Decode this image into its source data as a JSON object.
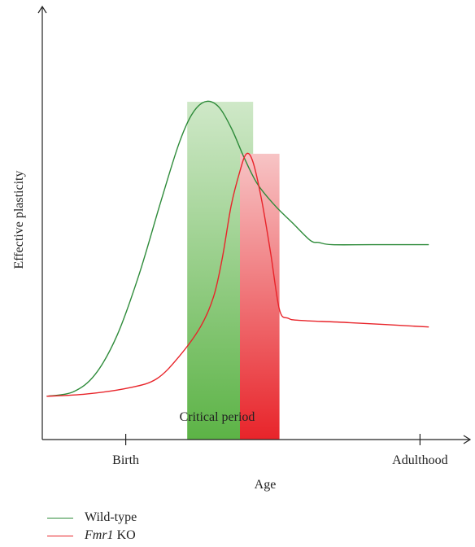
{
  "chart_data": {
    "type": "line",
    "title": "",
    "xlabel": "Age",
    "ylabel": "Effective plasticity",
    "x_ticks": [
      {
        "label": "Birth",
        "x": 0.19
      },
      {
        "label": "Adulthood",
        "x": 0.86
      }
    ],
    "critical_period": {
      "label": "Critical period",
      "bands": [
        {
          "series": "Wild-type",
          "x_start": 0.33,
          "x_end": 0.48,
          "peak": 0.78,
          "color": "#5cb346"
        },
        {
          "series": "Fmr1 KO",
          "x_start": 0.45,
          "x_end": 0.54,
          "peak": 0.66,
          "color": "#e8242a"
        }
      ]
    },
    "series": [
      {
        "name": "Wild-type",
        "color": "#2e8b3a",
        "points": [
          [
            0.01,
            0.1
          ],
          [
            0.07,
            0.11
          ],
          [
            0.12,
            0.15
          ],
          [
            0.17,
            0.24
          ],
          [
            0.22,
            0.38
          ],
          [
            0.27,
            0.55
          ],
          [
            0.31,
            0.68
          ],
          [
            0.34,
            0.75
          ],
          [
            0.37,
            0.78
          ],
          [
            0.4,
            0.77
          ],
          [
            0.43,
            0.72
          ],
          [
            0.46,
            0.65
          ],
          [
            0.49,
            0.59
          ],
          [
            0.53,
            0.54
          ],
          [
            0.57,
            0.5
          ],
          [
            0.61,
            0.46
          ],
          [
            0.63,
            0.455
          ],
          [
            0.66,
            0.45
          ],
          [
            0.75,
            0.45
          ],
          [
            0.88,
            0.45
          ]
        ]
      },
      {
        "name": "Fmr1 KO",
        "color": "#e8242a",
        "points": [
          [
            0.01,
            0.1
          ],
          [
            0.1,
            0.105
          ],
          [
            0.2,
            0.12
          ],
          [
            0.26,
            0.14
          ],
          [
            0.31,
            0.19
          ],
          [
            0.36,
            0.26
          ],
          [
            0.39,
            0.33
          ],
          [
            0.41,
            0.42
          ],
          [
            0.43,
            0.54
          ],
          [
            0.45,
            0.62
          ],
          [
            0.465,
            0.66
          ],
          [
            0.48,
            0.64
          ],
          [
            0.5,
            0.55
          ],
          [
            0.52,
            0.43
          ],
          [
            0.54,
            0.3
          ],
          [
            0.56,
            0.28
          ],
          [
            0.59,
            0.275
          ],
          [
            0.7,
            0.27
          ],
          [
            0.88,
            0.26
          ]
        ]
      }
    ]
  },
  "legend": {
    "items": [
      {
        "label": "Wild-type",
        "color": "#2e8b3a"
      },
      {
        "label_italic": "Fmr1",
        "label_rest": " KO",
        "color": "#e8242a"
      }
    ]
  }
}
